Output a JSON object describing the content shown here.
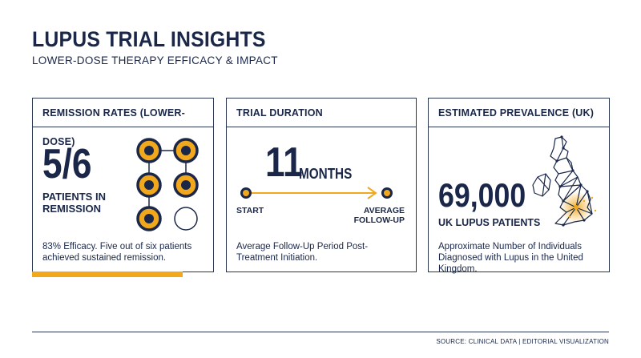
{
  "header": {
    "title": "LUPUS TRIAL INSIGHTS",
    "subtitle": "LOWER-DOSE THERAPY EFFICACY & IMPACT"
  },
  "cards": {
    "remission": {
      "heading": "REMISSION RATES (LOWER-DOSE)",
      "value": "5/6",
      "label_line1": "PATIENTS IN",
      "label_line2": "REMISSION",
      "description": "83% Efficacy. Five out of six patients achieved sustained remission.",
      "patients_filled": 5,
      "patients_total": 6
    },
    "duration": {
      "heading": "TRIAL DURATION",
      "value": "11",
      "unit": "MONTHS",
      "start_label": "START",
      "end_label_line1": "AVERAGE",
      "end_label_line2": "FOLLOW-UP",
      "description": "Average Follow-Up Period Post-Treatment Initiation."
    },
    "prevalence": {
      "heading": "ESTIMATED PREVALENCE (UK)",
      "value": "69,000",
      "label": "UK LUPUS PATIENTS",
      "description": "Approximate Number of Individuals Diagnosed with Lupus in the United Kingdom.",
      "map_icon": "uk-map-icon"
    }
  },
  "footer": {
    "source": "SOURCE: CLINICAL DATA | EDITORIAL VISUALIZATION"
  },
  "colors": {
    "navy": "#1a2749",
    "accent": "#f2a81d"
  }
}
